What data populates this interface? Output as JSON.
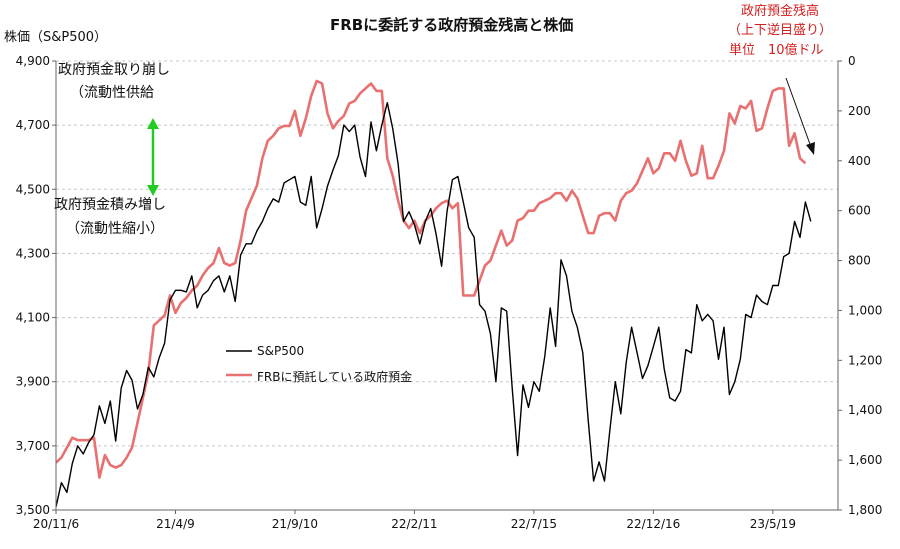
{
  "chart_data": {
    "type": "line",
    "title": "FRBに委託する政府預金残高と株価",
    "left_axis_label": "株価（S&P500）",
    "left_axis_ticks": [
      "3,500",
      "3,700",
      "3,900",
      "4,100",
      "4,300",
      "4,500",
      "4,700",
      "4,900"
    ],
    "left_axis_range": [
      3500,
      4900
    ],
    "right_axis_label_lines": [
      "政府預金残高",
      "（上下逆目盛り）",
      "単位　10億ドル"
    ],
    "right_axis_ticks": [
      "0",
      "200",
      "400",
      "600",
      "800",
      "1,000",
      "1,200",
      "1,400",
      "1,600",
      "1,800"
    ],
    "right_axis_range": [
      0,
      1800
    ],
    "right_axis_inverted": true,
    "x_tick_labels": [
      "20/11/6",
      "21/4/9",
      "21/9/10",
      "22/2/11",
      "22/7/15",
      "22/12/16",
      "23/5/19"
    ],
    "x_tick_weeks": [
      0,
      22,
      44,
      66,
      88,
      110,
      132
    ],
    "x_range_weeks": [
      0,
      144
    ],
    "legend_placement": "center-left",
    "series": [
      {
        "name": "S&P500",
        "axis": "left",
        "color": "#000000",
        "values": [
          3510,
          3585,
          3555,
          3645,
          3700,
          3675,
          3710,
          3735,
          3825,
          3770,
          3840,
          3715,
          3880,
          3935,
          3905,
          3815,
          3860,
          3945,
          3915,
          3975,
          4020,
          4155,
          4185,
          4185,
          4180,
          4230,
          4130,
          4170,
          4185,
          4215,
          4230,
          4180,
          4230,
          4150,
          4295,
          4330,
          4330,
          4370,
          4400,
          4440,
          4470,
          4460,
          4520,
          4530,
          4540,
          4460,
          4450,
          4540,
          4380,
          4440,
          4510,
          4560,
          4605,
          4700,
          4680,
          4700,
          4600,
          4540,
          4710,
          4620,
          4700,
          4770,
          4690,
          4580,
          4400,
          4430,
          4390,
          4330,
          4400,
          4440,
          4360,
          4260,
          4430,
          4530,
          4540,
          4460,
          4380,
          4350,
          4140,
          4120,
          4050,
          3900,
          4130,
          4120,
          3880,
          3670,
          3890,
          3820,
          3900,
          3870,
          3980,
          4130,
          4010,
          4280,
          4230,
          4120,
          4070,
          3990,
          3780,
          3590,
          3650,
          3590,
          3750,
          3900,
          3800,
          3960,
          4070,
          3990,
          3910,
          3950,
          4010,
          4070,
          3940,
          3850,
          3840,
          3870,
          4000,
          3990,
          4140,
          4090,
          4110,
          4090,
          3970,
          4070,
          3860,
          3900,
          3970,
          4110,
          4100,
          4170,
          4150,
          4140,
          4200,
          4200,
          4290,
          4300,
          4400,
          4350,
          4460,
          4400
        ]
      },
      {
        "name": "FRBに預託している政府預金",
        "axis": "right",
        "color": "#e87070",
        "values": [
          1610,
          1590,
          1550,
          1510,
          1520,
          1520,
          1520,
          1510,
          1670,
          1580,
          1620,
          1630,
          1620,
          1590,
          1550,
          1450,
          1350,
          1250,
          1060,
          1040,
          1020,
          940,
          1010,
          970,
          950,
          920,
          900,
          860,
          830,
          810,
          750,
          810,
          820,
          810,
          720,
          600,
          550,
          500,
          390,
          320,
          300,
          270,
          260,
          260,
          200,
          300,
          230,
          140,
          80,
          90,
          210,
          270,
          240,
          220,
          170,
          160,
          130,
          110,
          90,
          120,
          120,
          390,
          460,
          560,
          640,
          670,
          640,
          690,
          640,
          620,
          590,
          570,
          560,
          590,
          570,
          940,
          940,
          940,
          880,
          820,
          800,
          740,
          680,
          740,
          720,
          640,
          630,
          600,
          600,
          570,
          560,
          550,
          530,
          530,
          560,
          520,
          550,
          620,
          690,
          690,
          620,
          610,
          610,
          640,
          560,
          530,
          520,
          490,
          440,
          390,
          450,
          430,
          370,
          370,
          400,
          320,
          400,
          460,
          450,
          340,
          470,
          470,
          420,
          360,
          210,
          250,
          180,
          190,
          160,
          280,
          270,
          190,
          120,
          110,
          110,
          340,
          290,
          390,
          410
        ]
      }
    ],
    "annotations": {
      "upper_line1": "政府預金取り崩し",
      "upper_line2": "（流動性供給",
      "lower_line1": "政府預金積み増し",
      "lower_line2": "（流動性縮小）"
    }
  }
}
